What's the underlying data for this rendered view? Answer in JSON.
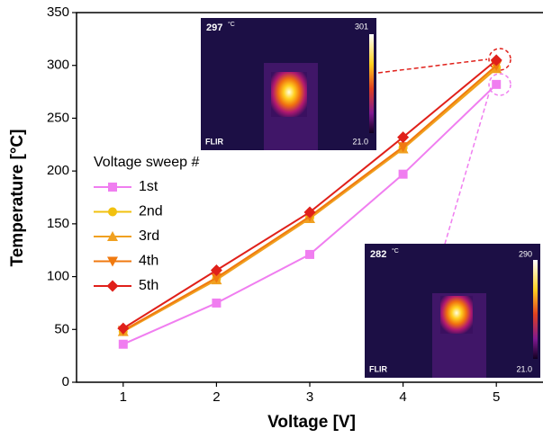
{
  "chart_data": {
    "type": "line",
    "x_label": "Voltage [V]",
    "y_label": "Temperature [°C]",
    "legend_title": "Voltage sweep #",
    "x": [
      1,
      2,
      3,
      4,
      5
    ],
    "xlim": [
      0.5,
      5.5
    ],
    "xticks": [
      1,
      2,
      3,
      4,
      5
    ],
    "ylim": [
      0,
      350
    ],
    "yticks": [
      0,
      50,
      100,
      150,
      200,
      250,
      300,
      350
    ],
    "series": [
      {
        "name": "1st",
        "color": "#f07ef0",
        "marker": "square",
        "values": [
          36,
          75,
          121,
          197,
          282
        ]
      },
      {
        "name": "2nd",
        "color": "#f2c10f",
        "marker": "circle",
        "values": [
          48,
          98,
          156,
          222,
          298
        ]
      },
      {
        "name": "3rd",
        "color": "#f0a020",
        "marker": "triangle-up",
        "values": [
          48,
          97,
          155,
          221,
          297
        ]
      },
      {
        "name": "4th",
        "color": "#f07a10",
        "marker": "triangle-down",
        "values": [
          49,
          99,
          157,
          223,
          300
        ]
      },
      {
        "name": "5th",
        "color": "#e0201a",
        "marker": "diamond",
        "values": [
          51,
          106,
          161,
          232,
          305
        ]
      }
    ],
    "insets": [
      {
        "reading": "297",
        "unit": "°C",
        "scale_max": "301",
        "scale_min": "21.0",
        "brand": "FLIR"
      },
      {
        "reading": "282",
        "unit": "°C",
        "scale_max": "290",
        "scale_min": "21.0",
        "brand": "FLIR"
      }
    ]
  }
}
